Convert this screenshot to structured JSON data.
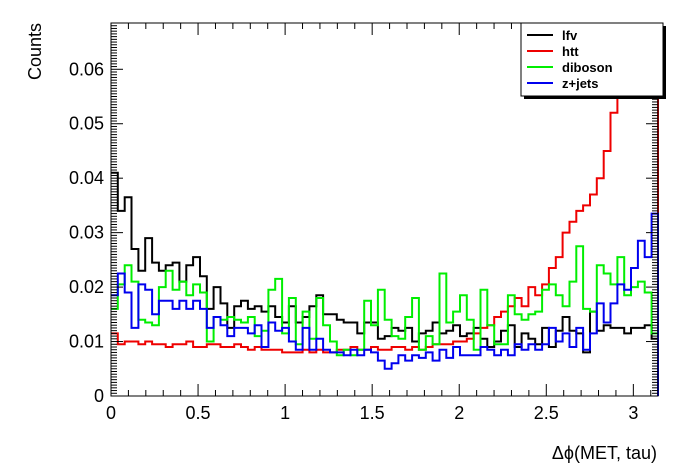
{
  "chart_data": {
    "type": "histogram",
    "xlabel": "Δϕ(MET, tau)",
    "ylabel": "Counts",
    "xlim": [
      0,
      3.1416
    ],
    "ylim": [
      0,
      0.0685
    ],
    "x_ticks": [
      0,
      0.5,
      1,
      1.5,
      2,
      2.5,
      3
    ],
    "y_ticks": [
      0,
      0.01,
      0.02,
      0.03,
      0.04,
      0.05,
      0.06
    ],
    "x_tick_labels": [
      "0",
      "0.5",
      "1",
      "1.5",
      "2",
      "2.5",
      "3"
    ],
    "y_tick_labels": [
      "0",
      "0.01",
      "0.02",
      "0.03",
      "0.04",
      "0.05",
      "0.06"
    ],
    "bin_width": 0.0393,
    "legend_position": "top-right",
    "series": [
      {
        "name": "lfv",
        "color": "#000000",
        "values": [
          0.041,
          0.034,
          0.0365,
          0.027,
          0.023,
          0.029,
          0.0245,
          0.023,
          0.024,
          0.0245,
          0.021,
          0.024,
          0.0255,
          0.022,
          0.016,
          0.02,
          0.017,
          0.0125,
          0.0165,
          0.0175,
          0.016,
          0.0165,
          0.0155,
          0.0165,
          0.0145,
          0.0135,
          0.0165,
          0.0135,
          0.0145,
          0.0165,
          0.0185,
          0.015,
          0.015,
          0.014,
          0.0135,
          0.0135,
          0.0115,
          0.0135,
          0.0135,
          0.0105,
          0.011,
          0.0125,
          0.012,
          0.0125,
          0.01,
          0.0115,
          0.012,
          0.0135,
          0.0115,
          0.012,
          0.013,
          0.011,
          0.0115,
          0.0125,
          0.0105,
          0.009,
          0.01,
          0.012,
          0.013,
          0.009,
          0.0115,
          0.0105,
          0.0095,
          0.0125,
          0.009,
          0.012,
          0.0145,
          0.012,
          0.0115,
          0.008,
          0.0155,
          0.012,
          0.013,
          0.0125,
          0.0125,
          0.0115,
          0.0125,
          0.0125,
          0.013,
          0.0105
        ]
      },
      {
        "name": "htt",
        "color": "#ee0000",
        "values": [
          0.0115,
          0.0095,
          0.01,
          0.01,
          0.0095,
          0.01,
          0.0095,
          0.0095,
          0.009,
          0.0095,
          0.0095,
          0.01,
          0.009,
          0.009,
          0.0095,
          0.0095,
          0.009,
          0.009,
          0.0095,
          0.009,
          0.0085,
          0.009,
          0.0085,
          0.0085,
          0.0085,
          0.008,
          0.008,
          0.008,
          0.0085,
          0.008,
          0.0085,
          0.008,
          0.008,
          0.0085,
          0.0085,
          0.009,
          0.0085,
          0.0085,
          0.009,
          0.0085,
          0.0085,
          0.009,
          0.009,
          0.0085,
          0.009,
          0.0085,
          0.009,
          0.0095,
          0.0095,
          0.0095,
          0.01,
          0.01,
          0.0105,
          0.0115,
          0.0125,
          0.013,
          0.0145,
          0.0155,
          0.0165,
          0.018,
          0.0165,
          0.02,
          0.0185,
          0.0205,
          0.0235,
          0.0255,
          0.03,
          0.032,
          0.034,
          0.035,
          0.037,
          0.04,
          0.045,
          0.052,
          0.0575,
          0.068,
          0.068,
          0.068,
          0.068,
          0.068
        ]
      },
      {
        "name": "diboson",
        "color": "#00ee00",
        "values": [
          0.016,
          0.0205,
          0.024,
          0.021,
          0.014,
          0.0135,
          0.013,
          0.02,
          0.023,
          0.0195,
          0.021,
          0.0185,
          0.0205,
          0.019,
          0.01,
          0.0145,
          0.014,
          0.0145,
          0.014,
          0.0135,
          0.0145,
          0.011,
          0.012,
          0.0195,
          0.0215,
          0.0115,
          0.018,
          0.0095,
          0.0155,
          0.0105,
          0.018,
          0.013,
          0.01,
          0.0075,
          0.0085,
          0.0075,
          0.0085,
          0.0175,
          0.013,
          0.0195,
          0.014,
          0.011,
          0.0105,
          0.0145,
          0.018,
          0.0085,
          0.011,
          0.0095,
          0.0225,
          0.0135,
          0.0155,
          0.0185,
          0.014,
          0.0085,
          0.0195,
          0.013,
          0.0095,
          0.0095,
          0.0185,
          0.015,
          0.014,
          0.015,
          0.0155,
          0.0195,
          0.0205,
          0.0185,
          0.0165,
          0.021,
          0.0275,
          0.016,
          0.0155,
          0.024,
          0.0225,
          0.0205,
          0.0255,
          0.0185,
          0.02,
          0.021,
          0.019,
          0.0115
        ]
      },
      {
        "name": "z+jets",
        "color": "#0000ee",
        "values": [
          0.0185,
          0.0225,
          0.019,
          0.0125,
          0.0205,
          0.0195,
          0.015,
          0.0175,
          0.0175,
          0.016,
          0.0175,
          0.016,
          0.0175,
          0.016,
          0.0125,
          0.0145,
          0.013,
          0.011,
          0.0125,
          0.0125,
          0.0115,
          0.013,
          0.009,
          0.0135,
          0.012,
          0.0125,
          0.01,
          0.0085,
          0.0125,
          0.0085,
          0.0105,
          0.0085,
          0.008,
          0.008,
          0.0075,
          0.0085,
          0.0075,
          0.0085,
          0.008,
          0.0065,
          0.005,
          0.006,
          0.0075,
          0.0065,
          0.0075,
          0.007,
          0.008,
          0.0065,
          0.0085,
          0.007,
          0.009,
          0.0075,
          0.0075,
          0.0075,
          0.009,
          0.0085,
          0.0075,
          0.0085,
          0.0075,
          0.0095,
          0.0085,
          0.0095,
          0.0085,
          0.0095,
          0.0125,
          0.01,
          0.0115,
          0.009,
          0.0125,
          0.0085,
          0.0115,
          0.017,
          0.0135,
          0.017,
          0.0205,
          0.0195,
          0.0235,
          0.0285,
          0.0255,
          0.0335
        ]
      }
    ]
  }
}
